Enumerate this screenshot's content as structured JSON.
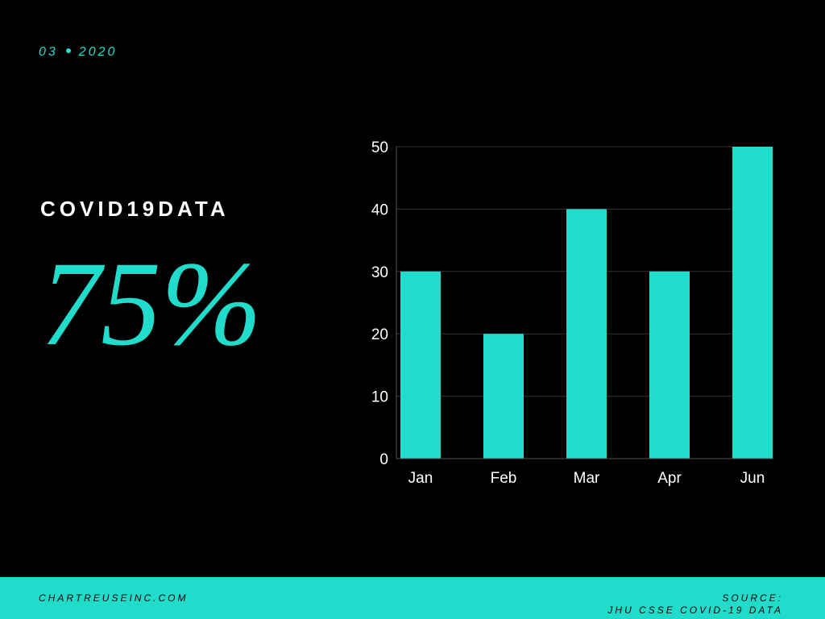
{
  "header": {
    "date_month": "03",
    "date_year": "2020"
  },
  "headline": {
    "title": "COVID19DATA",
    "stat": "75%"
  },
  "chart_data": {
    "type": "bar",
    "categories": [
      "Jan",
      "Feb",
      "Mar",
      "Apr",
      "Jun"
    ],
    "values": [
      30,
      20,
      40,
      30,
      50
    ],
    "title": "",
    "xlabel": "",
    "ylabel": "",
    "ylim": [
      0,
      50
    ],
    "yticks": [
      0,
      10,
      20,
      30,
      40,
      50
    ],
    "grid": true,
    "bar_color": "#22dccb"
  },
  "footer": {
    "website": "CHARTREUSEINC.COM",
    "source_label": "SOURCE:",
    "source_value": "JHU CSSE COVID-19 DATA"
  },
  "colors": {
    "background": "#000000",
    "accent": "#22dccb",
    "text": "#ffffff",
    "grid": "#333333"
  }
}
